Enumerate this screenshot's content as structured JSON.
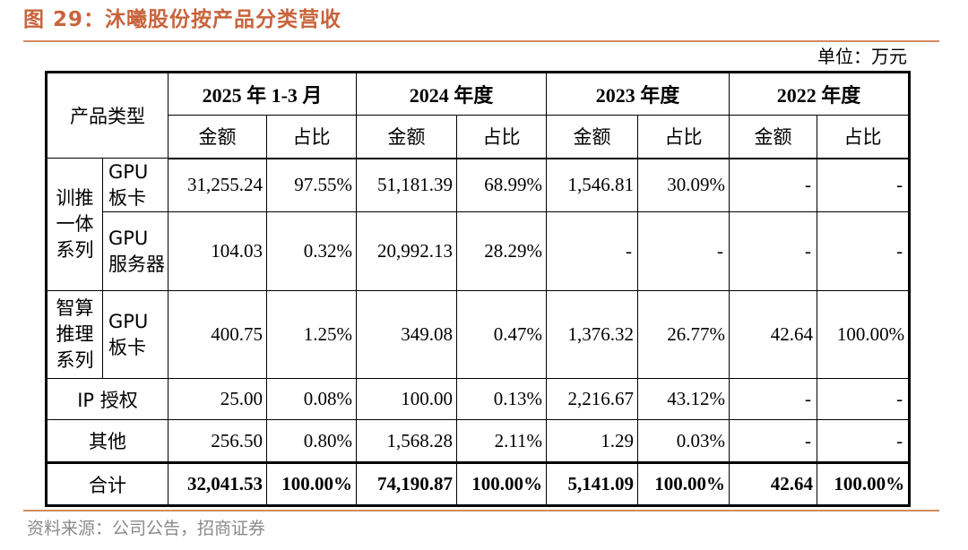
{
  "title": "图 29：沐曦股份按产品分类营收",
  "unit": "单位：万元",
  "header": {
    "product_type": "产品类型",
    "periods": [
      "2025 年 1-3 月",
      "2024 年度",
      "2023 年度",
      "2022 年度"
    ],
    "amount": "金额",
    "share": "占比"
  },
  "groups": {
    "train_infer": "训推一体系列",
    "compute_infer": "智算推理系列"
  },
  "rows": [
    {
      "sub": "GPU板卡",
      "values": [
        "31,255.24",
        "97.55%",
        "51,181.39",
        "68.99%",
        "1,546.81",
        "30.09%",
        "-",
        "-"
      ]
    },
    {
      "sub": "GPU服务器",
      "values": [
        "104.03",
        "0.32%",
        "20,992.13",
        "28.29%",
        "-",
        "-",
        "-",
        "-"
      ]
    },
    {
      "sub": "GPU板卡",
      "values": [
        "400.75",
        "1.25%",
        "349.08",
        "0.47%",
        "1,376.32",
        "26.77%",
        "42.64",
        "100.00%"
      ]
    },
    {
      "label": "IP 授权",
      "values": [
        "25.00",
        "0.08%",
        "100.00",
        "0.13%",
        "2,216.67",
        "43.12%",
        "-",
        "-"
      ]
    },
    {
      "label": "其他",
      "values": [
        "256.50",
        "0.80%",
        "1,568.28",
        "2.11%",
        "1.29",
        "0.03%",
        "-",
        "-"
      ]
    },
    {
      "label": "合计",
      "values": [
        "32,041.53",
        "100.00%",
        "74,190.87",
        "100.00%",
        "5,141.09",
        "100.00%",
        "42.64",
        "100.00%"
      ]
    }
  ],
  "source": "资料来源：公司公告，招商证券"
}
